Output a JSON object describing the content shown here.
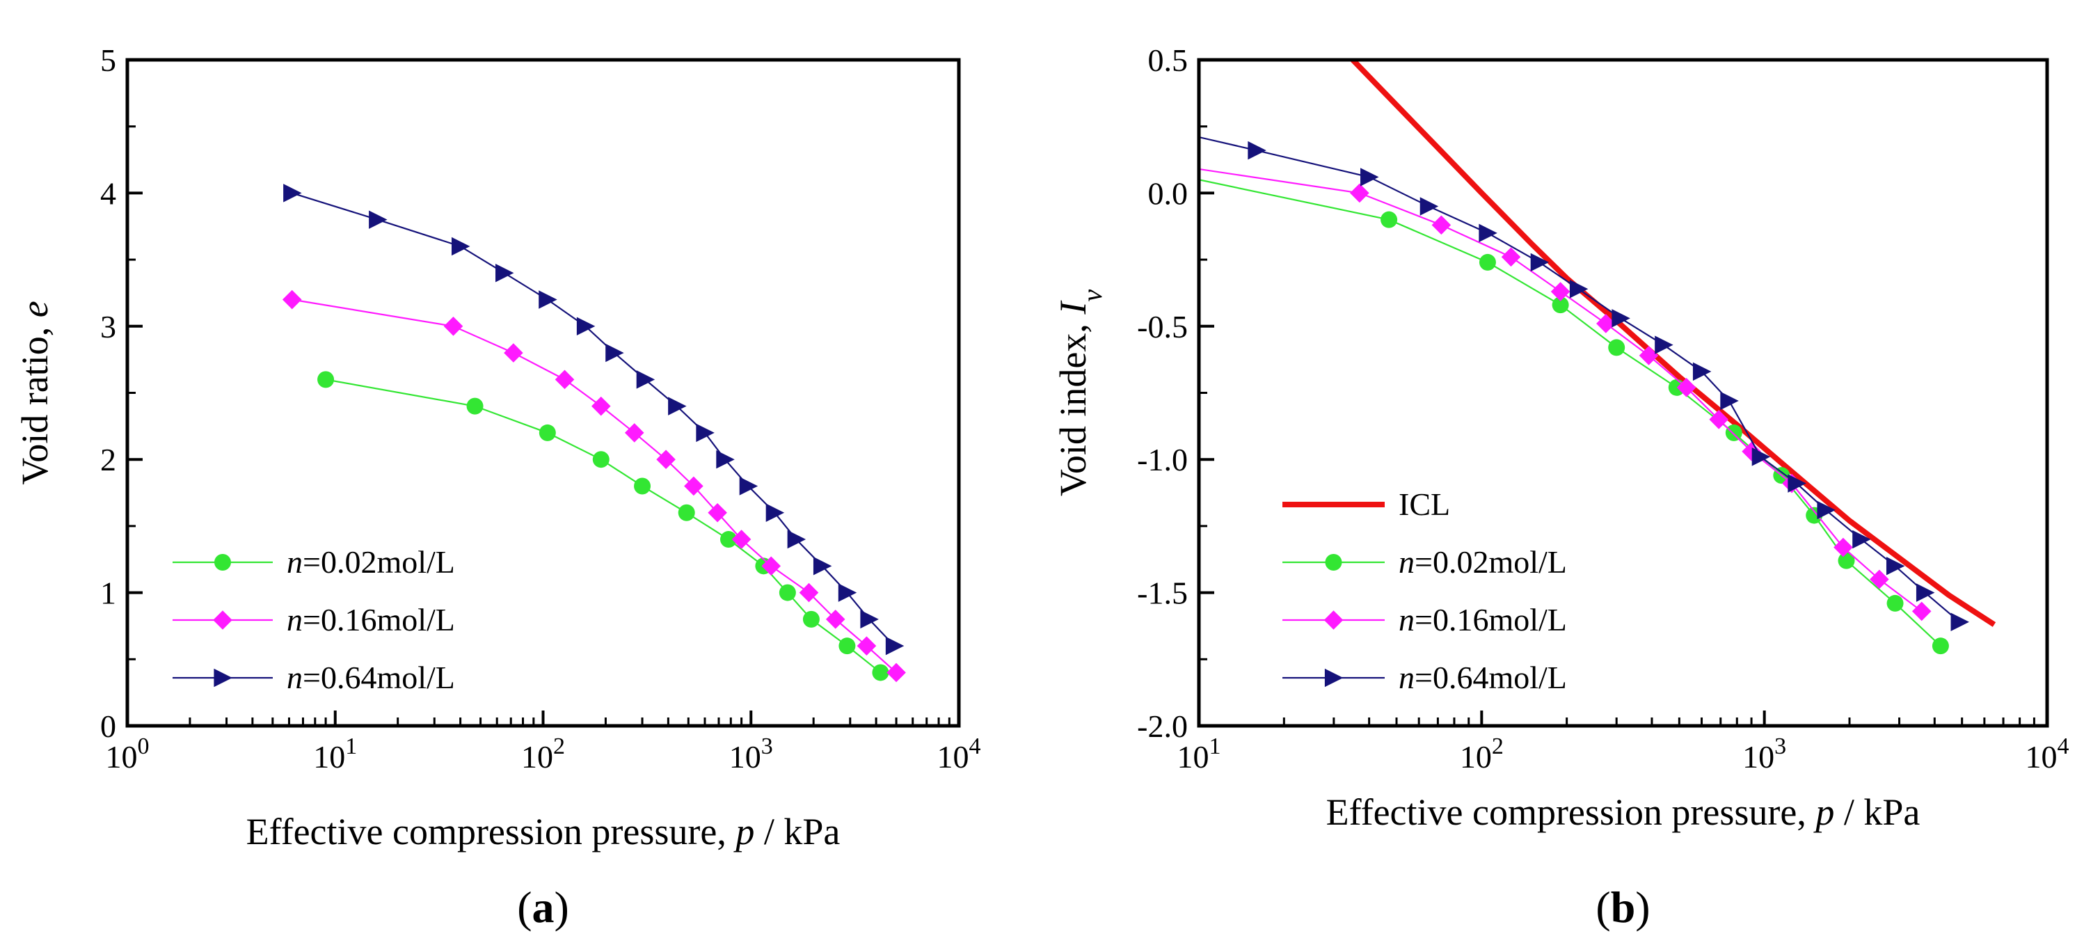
{
  "chart_data": [
    {
      "id": "a",
      "type": "line",
      "panel_label": "a",
      "title": "",
      "xlabel": "Effective compression pressure, ",
      "xlabel_var": "p",
      "xlabel_unit": " / kPa",
      "ylabel": "Void ratio, ",
      "ylabel_var": "e",
      "xscale": "log",
      "xlim": [
        1,
        10000
      ],
      "ylim": [
        0,
        5
      ],
      "x_ticks": [
        {
          "base": "10",
          "exp": "0"
        },
        {
          "base": "10",
          "exp": "1"
        },
        {
          "base": "10",
          "exp": "2"
        },
        {
          "base": "10",
          "exp": "3"
        },
        {
          "base": "10",
          "exp": "4"
        }
      ],
      "y_ticks": [
        "0",
        "1",
        "2",
        "3",
        "4",
        "5"
      ],
      "legend_position": "bottom-left",
      "series": [
        {
          "name_prefix": "n",
          "name": "=0.02mol/L",
          "color": "#33e633",
          "marker": "circle",
          "x": [
            9,
            47,
            105,
            190,
            300,
            490,
            780,
            1150,
            1500,
            1950,
            2900,
            4200
          ],
          "y": [
            2.6,
            2.4,
            2.2,
            2.0,
            1.8,
            1.6,
            1.4,
            1.2,
            1.0,
            0.8,
            0.6,
            0.4
          ]
        },
        {
          "name_prefix": "n",
          "name": "=0.16mol/L",
          "color": "#ff1aff",
          "marker": "diamond",
          "x": [
            6.2,
            37,
            72,
            127,
            190,
            275,
            390,
            530,
            690,
            900,
            1250,
            1900,
            2550,
            3600,
            5000
          ],
          "y": [
            3.2,
            3.0,
            2.8,
            2.6,
            2.4,
            2.2,
            2.0,
            1.8,
            1.6,
            1.4,
            1.2,
            1.0,
            0.8,
            0.6,
            0.4
          ]
        },
        {
          "name_prefix": "n",
          "name": "=0.64mol/L",
          "color": "#15127a",
          "marker": "triangle-right",
          "x": [
            6.2,
            16,
            40,
            65,
            105,
            160,
            220,
            310,
            440,
            600,
            750,
            970,
            1300,
            1650,
            2200,
            2900,
            3700,
            4900
          ],
          "y": [
            4.0,
            3.8,
            3.6,
            3.4,
            3.2,
            3.0,
            2.8,
            2.6,
            2.4,
            2.2,
            2.0,
            1.8,
            1.6,
            1.4,
            1.2,
            1.0,
            0.8,
            0.6
          ]
        }
      ]
    },
    {
      "id": "b",
      "type": "line",
      "panel_label": "b",
      "title": "",
      "xlabel": "Effective compression pressure, ",
      "xlabel_var": "p",
      "xlabel_unit": " / kPa",
      "ylabel": "Void index, ",
      "ylabel_var": "I",
      "ylabel_sub": "v",
      "xscale": "log",
      "xlim": [
        10,
        10000
      ],
      "ylim": [
        -2.0,
        0.5
      ],
      "x_ticks": [
        {
          "base": "10",
          "exp": "1"
        },
        {
          "base": "10",
          "exp": "2"
        },
        {
          "base": "10",
          "exp": "3"
        },
        {
          "base": "10",
          "exp": "4"
        }
      ],
      "y_ticks": [
        "-2.0",
        "-1.5",
        "-1.0",
        "-0.5",
        "0.0",
        "0.5"
      ],
      "legend_position": "bottom-left",
      "icl": {
        "name": "ICL",
        "color": "#ee1111",
        "x": [
          35,
          50,
          70,
          100,
          150,
          200,
          300,
          500,
          800,
          1200,
          2000,
          3000,
          4500,
          6500
        ],
        "y": [
          0.5,
          0.33,
          0.17,
          0.0,
          -0.19,
          -0.32,
          -0.48,
          -0.69,
          -0.87,
          -1.03,
          -1.23,
          -1.37,
          -1.51,
          -1.62
        ]
      },
      "series": [
        {
          "name_prefix": "n",
          "name": "=0.02mol/L",
          "color": "#33e633",
          "marker": "circle",
          "x": [
            10,
            47,
            105,
            190,
            300,
            490,
            780,
            1150,
            1500,
            1950,
            2900,
            4200
          ],
          "y": [
            0.05,
            -0.1,
            -0.26,
            -0.42,
            -0.58,
            -0.73,
            -0.9,
            -1.06,
            -1.21,
            -1.38,
            -1.54,
            -1.7
          ]
        },
        {
          "name_prefix": "n",
          "name": "=0.16mol/L",
          "color": "#ff1aff",
          "marker": "diamond",
          "x": [
            10,
            37,
            72,
            127,
            190,
            275,
            390,
            530,
            690,
            900,
            1250,
            1900,
            2550,
            3600
          ],
          "y": [
            0.09,
            0.0,
            -0.12,
            -0.24,
            -0.37,
            -0.49,
            -0.61,
            -0.73,
            -0.85,
            -0.97,
            -1.09,
            -1.33,
            -1.45,
            -1.57
          ]
        },
        {
          "name_prefix": "n",
          "name": "=0.64mol/L",
          "color": "#15127a",
          "marker": "triangle-right",
          "x": [
            10,
            16,
            40,
            65,
            105,
            160,
            220,
            310,
            440,
            600,
            750,
            970,
            1300,
            1650,
            2200,
            2900,
            3700,
            4900
          ],
          "y": [
            0.21,
            0.16,
            0.06,
            -0.05,
            -0.15,
            -0.26,
            -0.36,
            -0.47,
            -0.57,
            -0.67,
            -0.78,
            -0.99,
            -1.09,
            -1.19,
            -1.3,
            -1.4,
            -1.5,
            -1.61
          ]
        }
      ]
    }
  ]
}
